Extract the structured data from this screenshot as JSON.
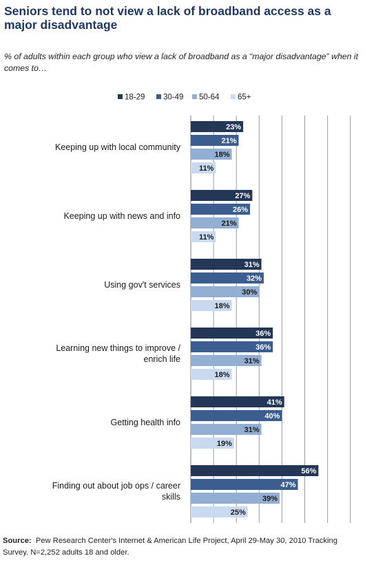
{
  "title": "Seniors tend to not view a lack of broadband access as a major disadvantage",
  "subtitle": "% of adults within each group who view a lack of broadband as a “major disadvantage” when it comes to…",
  "source_label": "Source:",
  "source_text": "Pew Research Center's Internet & American Life Project, April 29-May 30, 2010 Tracking Survey. N=2,252 adults 18 and older.",
  "colors": {
    "series": [
      "#243757",
      "#3b5d8f",
      "#93aed3",
      "#c9daf0"
    ],
    "label_dark_bg": "#ffffff",
    "label_light_bg": "#1a1a1a",
    "gridline": "#9a9a9a"
  },
  "chart_data": {
    "type": "bar",
    "orientation": "horizontal",
    "categories": [
      [
        "Keeping up with local community"
      ],
      [
        "Keeping up with news and info"
      ],
      [
        "Using gov't services"
      ],
      [
        "Learning new things to improve /",
        "enrich life"
      ],
      [
        "Getting health info"
      ],
      [
        "Finding out about job ops / career",
        "skills"
      ]
    ],
    "series": [
      {
        "name": "18-29",
        "values": [
          23,
          27,
          31,
          36,
          41,
          56
        ]
      },
      {
        "name": "30-49",
        "values": [
          21,
          26,
          32,
          36,
          40,
          47
        ]
      },
      {
        "name": "50-64",
        "values": [
          18,
          21,
          30,
          31,
          31,
          39
        ]
      },
      {
        "name": "65+",
        "values": [
          11,
          11,
          18,
          18,
          19,
          25
        ]
      }
    ],
    "value_suffix": "%",
    "xlim": [
      0,
      70
    ],
    "grid": true,
    "legend_position": "top"
  }
}
